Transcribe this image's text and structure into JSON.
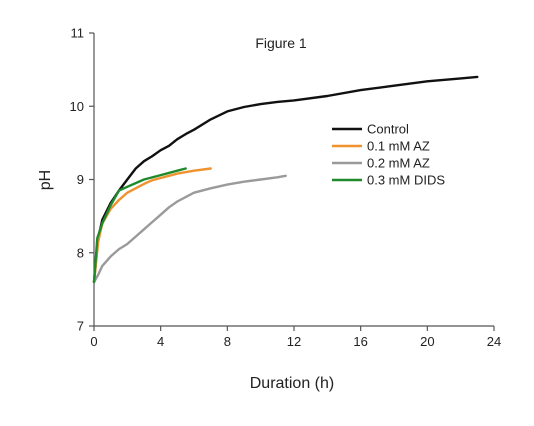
{
  "chart_data": {
    "type": "line",
    "title": "Figure 1",
    "xlabel": "Duration (h)",
    "ylabel": "pH",
    "xlim": [
      0,
      24
    ],
    "ylim": [
      7,
      11
    ],
    "xticks": [
      0,
      4,
      8,
      12,
      16,
      20,
      24
    ],
    "yticks": [
      7,
      8,
      9,
      10,
      11
    ],
    "grid": false,
    "legend_position": "right",
    "series": [
      {
        "name": "Control",
        "color": "#111111",
        "x": [
          0,
          0.25,
          0.5,
          1,
          1.5,
          2,
          2.5,
          3,
          3.5,
          4,
          4.5,
          5,
          5.5,
          6,
          7,
          8,
          9,
          10,
          11,
          12,
          14,
          16,
          18,
          20,
          22,
          23
        ],
        "y": [
          7.6,
          8.2,
          8.45,
          8.68,
          8.85,
          9.0,
          9.15,
          9.25,
          9.32,
          9.4,
          9.46,
          9.55,
          9.62,
          9.68,
          9.82,
          9.93,
          9.99,
          10.03,
          10.06,
          10.08,
          10.14,
          10.22,
          10.28,
          10.34,
          10.38,
          10.4
        ]
      },
      {
        "name": "0.1 mM AZ",
        "color": "#f0922e",
        "x": [
          0,
          0.25,
          0.5,
          1,
          1.5,
          2,
          2.5,
          3,
          3.5,
          4,
          4.5,
          5,
          6,
          7
        ],
        "y": [
          7.6,
          8.15,
          8.4,
          8.6,
          8.72,
          8.82,
          8.88,
          8.94,
          8.99,
          9.02,
          9.05,
          9.08,
          9.12,
          9.15
        ]
      },
      {
        "name": "0.2 mM AZ",
        "color": "#9a9a9a",
        "x": [
          0,
          0.25,
          0.5,
          1,
          1.5,
          2,
          2.5,
          3,
          3.5,
          4,
          4.5,
          5,
          6,
          7,
          8,
          9,
          10,
          11,
          11.5
        ],
        "y": [
          7.6,
          7.7,
          7.82,
          7.95,
          8.05,
          8.12,
          8.22,
          8.32,
          8.42,
          8.52,
          8.62,
          8.7,
          8.82,
          8.88,
          8.93,
          8.97,
          9.0,
          9.03,
          9.05
        ]
      },
      {
        "name": "0.3 mM DIDS",
        "color": "#1f8a2c",
        "x": [
          0,
          0.2,
          0.5,
          1,
          1.5,
          2,
          3,
          4,
          5,
          5.5
        ],
        "y": [
          7.6,
          8.2,
          8.4,
          8.65,
          8.85,
          8.9,
          9.0,
          9.06,
          9.12,
          9.15
        ]
      }
    ]
  }
}
